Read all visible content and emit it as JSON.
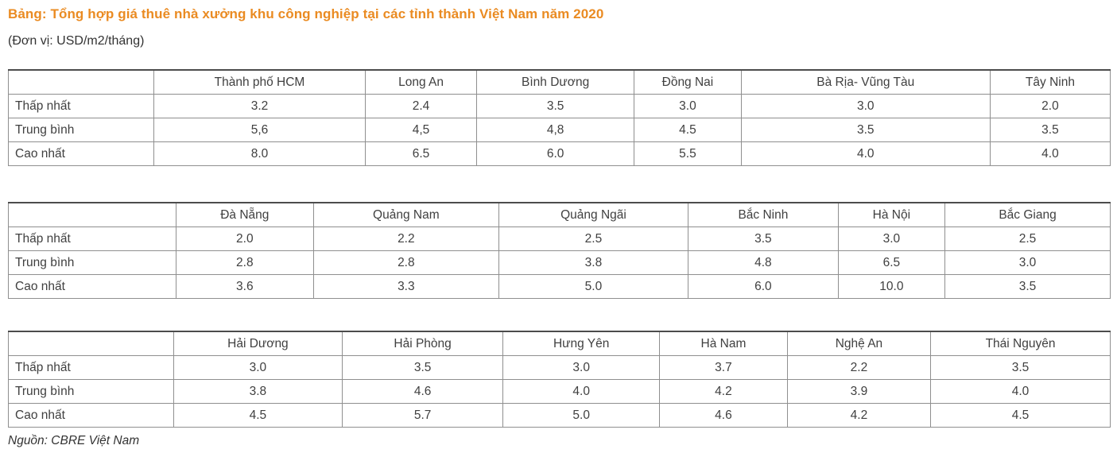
{
  "page": {
    "title": "Bảng: Tổng hợp giá thuê nhà xưởng khu công nghiệp tại các tỉnh thành Việt Nam năm 2020",
    "unit_note": "(Đơn vị: USD/m2/tháng)",
    "source": "Nguồn: CBRE Việt Nam",
    "accent_color": "#EA8B22",
    "text_color": "#404040",
    "table_border_color": "#8f8f8f",
    "table_top_border_color": "#4c4c4c"
  },
  "tables": [
    {
      "columns": [
        "Thành phố HCM",
        "Long An",
        "Bình Dương",
        "Đồng Nai",
        "Bà Rịa- Vũng Tàu",
        "Tây Ninh"
      ],
      "col_widths": [
        "13.2%",
        "19.2%",
        "10.1%",
        "14.3%",
        "9.7%",
        "22.6%",
        "10.9%"
      ],
      "rows": [
        {
          "label": "Thấp nhất",
          "values": [
            "3.2",
            "2.4",
            "3.5",
            "3.0",
            "3.0",
            "2.0"
          ]
        },
        {
          "label": "Trung bình",
          "values": [
            "5,6",
            "4,5",
            "4,8",
            "4.5",
            "3.5",
            "3.5"
          ]
        },
        {
          "label": "Cao nhất",
          "values": [
            "8.0",
            "6.5",
            "6.0",
            "5.5",
            "4.0",
            "4.0"
          ]
        }
      ]
    },
    {
      "columns": [
        "Đà Nẵng",
        "Quảng Nam",
        "Quảng Ngãi",
        "Bắc Ninh",
        "Hà Nội",
        "Bắc Giang"
      ],
      "col_widths": [
        "15.2%",
        "12.5%",
        "16.8%",
        "17.2%",
        "13.6%",
        "9.7%",
        "15.0%"
      ],
      "rows": [
        {
          "label": "Thấp nhất",
          "values": [
            "2.0",
            "2.2",
            "2.5",
            "3.5",
            "3.0",
            "2.5"
          ]
        },
        {
          "label": "Trung bình",
          "values": [
            "2.8",
            "2.8",
            "3.8",
            "4.8",
            "6.5",
            "3.0"
          ]
        },
        {
          "label": "Cao nhất",
          "values": [
            "3.6",
            "3.3",
            "5.0",
            "6.0",
            "10.0",
            "3.5"
          ]
        }
      ]
    },
    {
      "columns": [
        "Hải Dương",
        "Hải Phòng",
        "Hưng Yên",
        "Hà Nam",
        "Nghệ An",
        "Thái Nguyên"
      ],
      "col_widths": [
        "15.0%",
        "15.3%",
        "14.6%",
        "14.2%",
        "11.6%",
        "13.0%",
        "16.3%"
      ],
      "rows": [
        {
          "label": "Thấp nhất",
          "values": [
            "3.0",
            "3.5",
            "3.0",
            "3.7",
            "2.2",
            "3.5"
          ]
        },
        {
          "label": "Trung bình",
          "values": [
            "3.8",
            "4.6",
            "4.0",
            "4.2",
            "3.9",
            "4.0"
          ]
        },
        {
          "label": "Cao nhất",
          "values": [
            "4.5",
            "5.7",
            "5.0",
            "4.6",
            "4.2",
            "4.5"
          ]
        }
      ]
    }
  ]
}
